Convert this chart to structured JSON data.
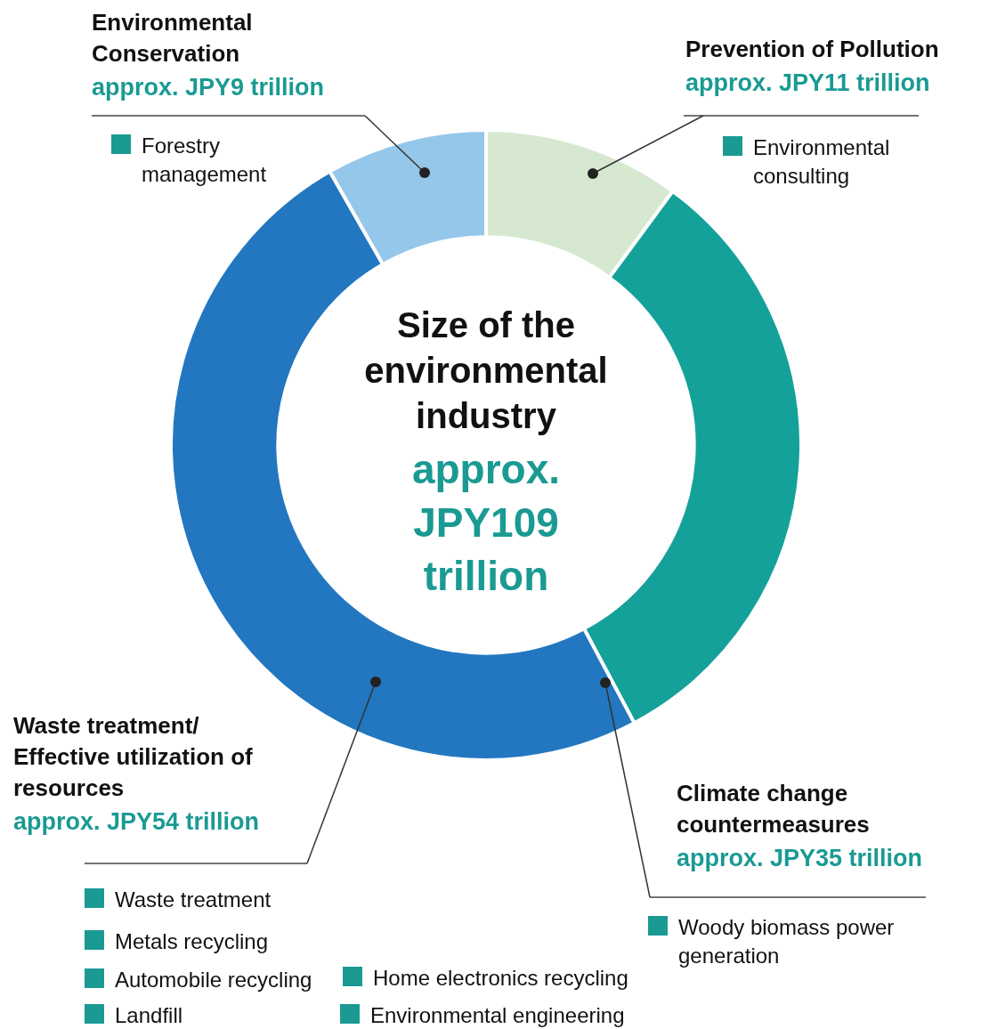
{
  "chart_data": {
    "type": "donut",
    "title": "Size of the environmental industry",
    "subtitle": "approx. JPY109 trillion",
    "categories": [
      "Prevention of Pollution",
      "Climate change countermeasures",
      "Waste treatment/ Effective utilization of resources",
      "Environmental Conservation"
    ],
    "values": [
      11,
      35,
      54,
      9
    ],
    "colors": [
      "#d6e9d0",
      "#14a19a",
      "#2277c0",
      "#94c7ea"
    ],
    "value_labels": [
      "approx. JPY11 trillion",
      "approx. JPY35 trillion",
      "approx. JPY54 trillion",
      "approx. JPY9 trillion"
    ],
    "annotations": [
      "Environmental consulting",
      "Woody biomass power generation",
      "Waste treatment",
      "Metals recycling",
      "Automobile recycling",
      "Landfill",
      "Home electronics recycling",
      "Environmental engineering",
      "Forestry management"
    ]
  }
}
